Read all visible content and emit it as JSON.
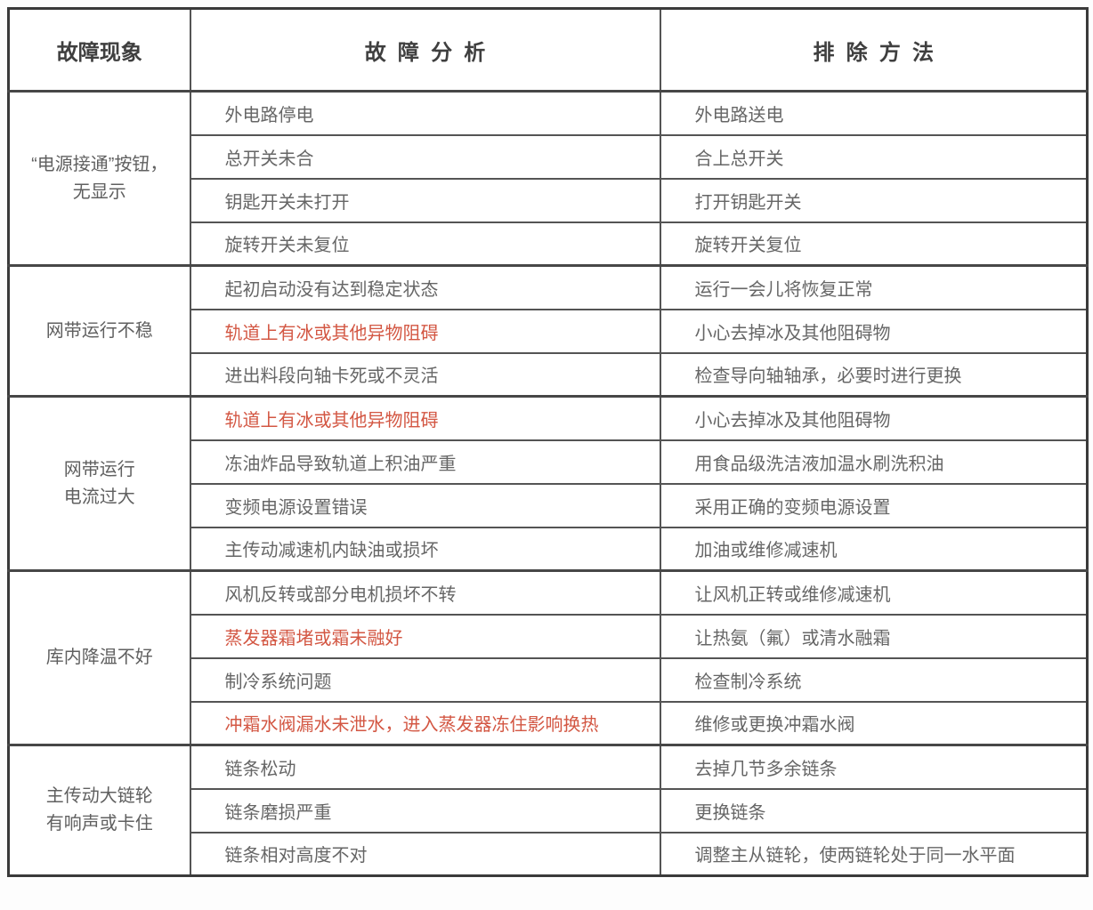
{
  "table": {
    "headers": [
      {
        "label": "故障现象"
      },
      {
        "label": "故障分析"
      },
      {
        "label": "排除方法"
      }
    ],
    "colors": {
      "red_text": "#d35743",
      "body_text": "#666666",
      "header_text": "#3f3f3f",
      "grid_line": "#545454",
      "outer_border": "#3a3a3a"
    },
    "groups": [
      {
        "phenomenon_lines": [
          "“电源接通”按钮，",
          "无显示"
        ],
        "rows": [
          {
            "analysis": "外电路停电",
            "analysis_red": false,
            "method": "外电路送电"
          },
          {
            "analysis": "总开关未合",
            "analysis_red": false,
            "method": "合上总开关"
          },
          {
            "analysis": "钥匙开关未打开",
            "analysis_red": false,
            "method": "打开钥匙开关"
          },
          {
            "analysis": "旋转开关未复位",
            "analysis_red": false,
            "method": "旋转开关复位"
          }
        ]
      },
      {
        "phenomenon_lines": [
          "网带运行不稳"
        ],
        "rows": [
          {
            "analysis": "起初启动没有达到稳定状态",
            "analysis_red": false,
            "method": "运行一会儿将恢复正常"
          },
          {
            "analysis": "轨道上有冰或其他异物阻碍",
            "analysis_red": true,
            "method": "小心去掉冰及其他阻碍物"
          },
          {
            "analysis": "进出料段向轴卡死或不灵活",
            "analysis_red": false,
            "method": "检查导向轴轴承，必要时进行更换"
          }
        ]
      },
      {
        "phenomenon_lines": [
          "网带运行",
          "电流过大"
        ],
        "rows": [
          {
            "analysis": "轨道上有冰或其他异物阻碍",
            "analysis_red": true,
            "method": "小心去掉冰及其他阻碍物"
          },
          {
            "analysis": "冻油炸品导致轨道上积油严重",
            "analysis_red": false,
            "method": "用食品级洗洁液加温水刷洗积油"
          },
          {
            "analysis": "变频电源设置错误",
            "analysis_red": false,
            "method": "采用正确的变频电源设置"
          },
          {
            "analysis": "主传动减速机内缺油或损坏",
            "analysis_red": false,
            "method": "加油或维修减速机"
          }
        ]
      },
      {
        "phenomenon_lines": [
          "库内降温不好"
        ],
        "rows": [
          {
            "analysis": "风机反转或部分电机损坏不转",
            "analysis_red": false,
            "method": "让风机正转或维修减速机"
          },
          {
            "analysis": "蒸发器霜堵或霜未融好",
            "analysis_red": true,
            "method": "让热氨（氟）或清水融霜"
          },
          {
            "analysis": "制冷系统问题",
            "analysis_red": false,
            "method": "检查制冷系统"
          },
          {
            "analysis": "冲霜水阀漏水未泄水，进入蒸发器冻住影响换热",
            "analysis_red": true,
            "method": "维修或更换冲霜水阀"
          }
        ]
      },
      {
        "phenomenon_lines": [
          "主传动大链轮",
          "有响声或卡住"
        ],
        "rows": [
          {
            "analysis": "链条松动",
            "analysis_red": false,
            "method": "去掉几节多余链条"
          },
          {
            "analysis": "链条磨损严重",
            "analysis_red": false,
            "method": "更换链条"
          },
          {
            "analysis": "链条相对高度不对",
            "analysis_red": false,
            "method": "调整主从链轮，使两链轮处于同一水平面"
          }
        ]
      }
    ]
  }
}
